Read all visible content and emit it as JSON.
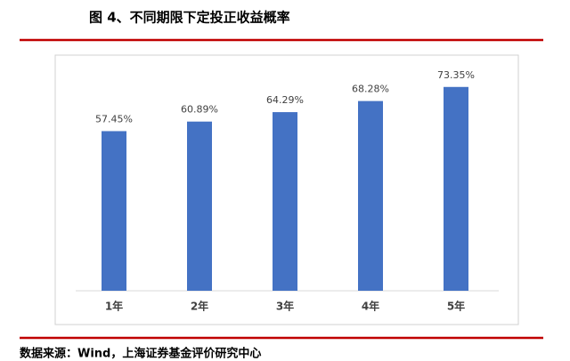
{
  "title": "图 4、不同期限下定投正收益概率",
  "source": "数据来源：Wind，上海证券基金评价研究中心",
  "chart_data": {
    "type": "bar",
    "categories": [
      "1年",
      "2年",
      "3年",
      "4年",
      "5年"
    ],
    "values": [
      57.45,
      60.89,
      64.29,
      68.28,
      73.35
    ],
    "value_labels": [
      "57.45%",
      "60.89%",
      "64.29%",
      "68.28%",
      "73.35%"
    ],
    "color": "#4472c4",
    "ylim": [
      0,
      80
    ]
  }
}
